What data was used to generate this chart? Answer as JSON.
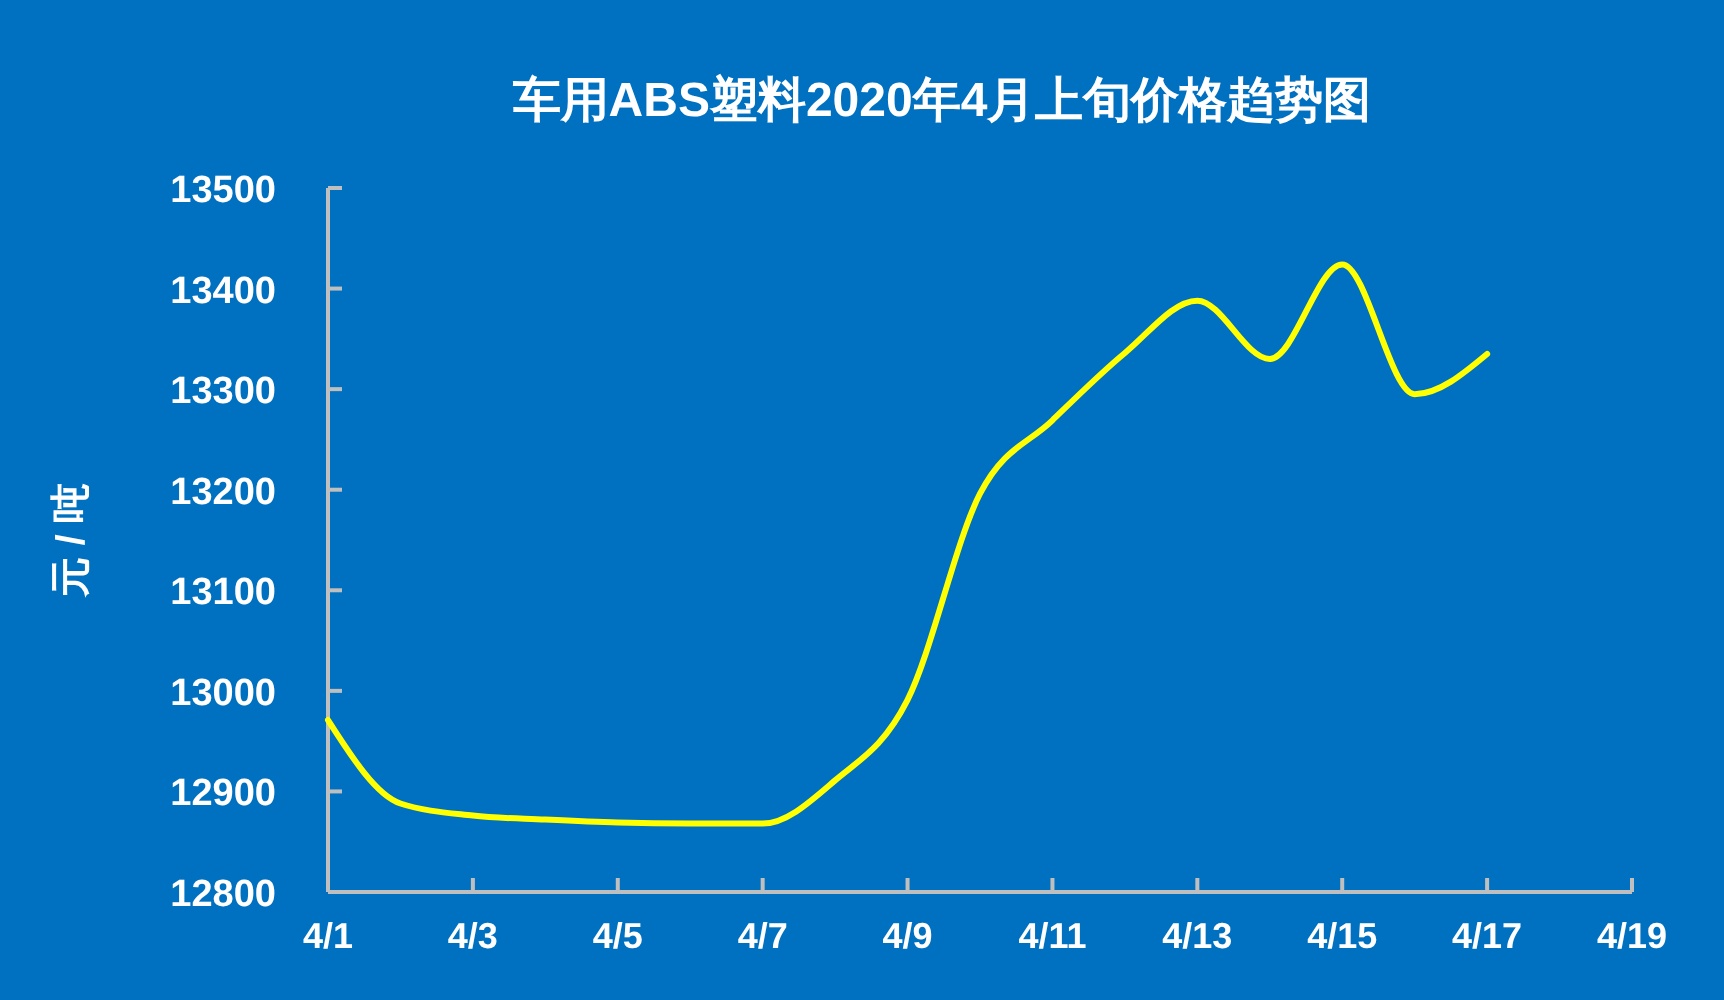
{
  "chart_data": {
    "type": "line",
    "title": "车用ABS塑料2020年4月上旬价格趋势图",
    "ylabel": "元 / 吨",
    "categories": [
      "4/1",
      null,
      "4/3",
      null,
      "4/5",
      null,
      "4/7",
      null,
      "4/9",
      null,
      "4/11",
      null,
      "4/13",
      null,
      "4/15",
      null,
      "4/17",
      null,
      "4/19"
    ],
    "series": [
      {
        "color": "#ffff00",
        "values": [
          12971,
          12888,
          12876,
          12872,
          12869,
          12868,
          12868,
          12911,
          12991,
          13196,
          13269,
          13336,
          13388,
          13330,
          13424,
          13295,
          13335,
          null,
          null
        ]
      }
    ],
    "ylim": [
      12800,
      13500
    ],
    "yticks": [
      12800,
      12900,
      13000,
      13100,
      13200,
      13300,
      13400,
      13500
    ],
    "grid": false,
    "marker": "none",
    "line_style": "solid"
  }
}
